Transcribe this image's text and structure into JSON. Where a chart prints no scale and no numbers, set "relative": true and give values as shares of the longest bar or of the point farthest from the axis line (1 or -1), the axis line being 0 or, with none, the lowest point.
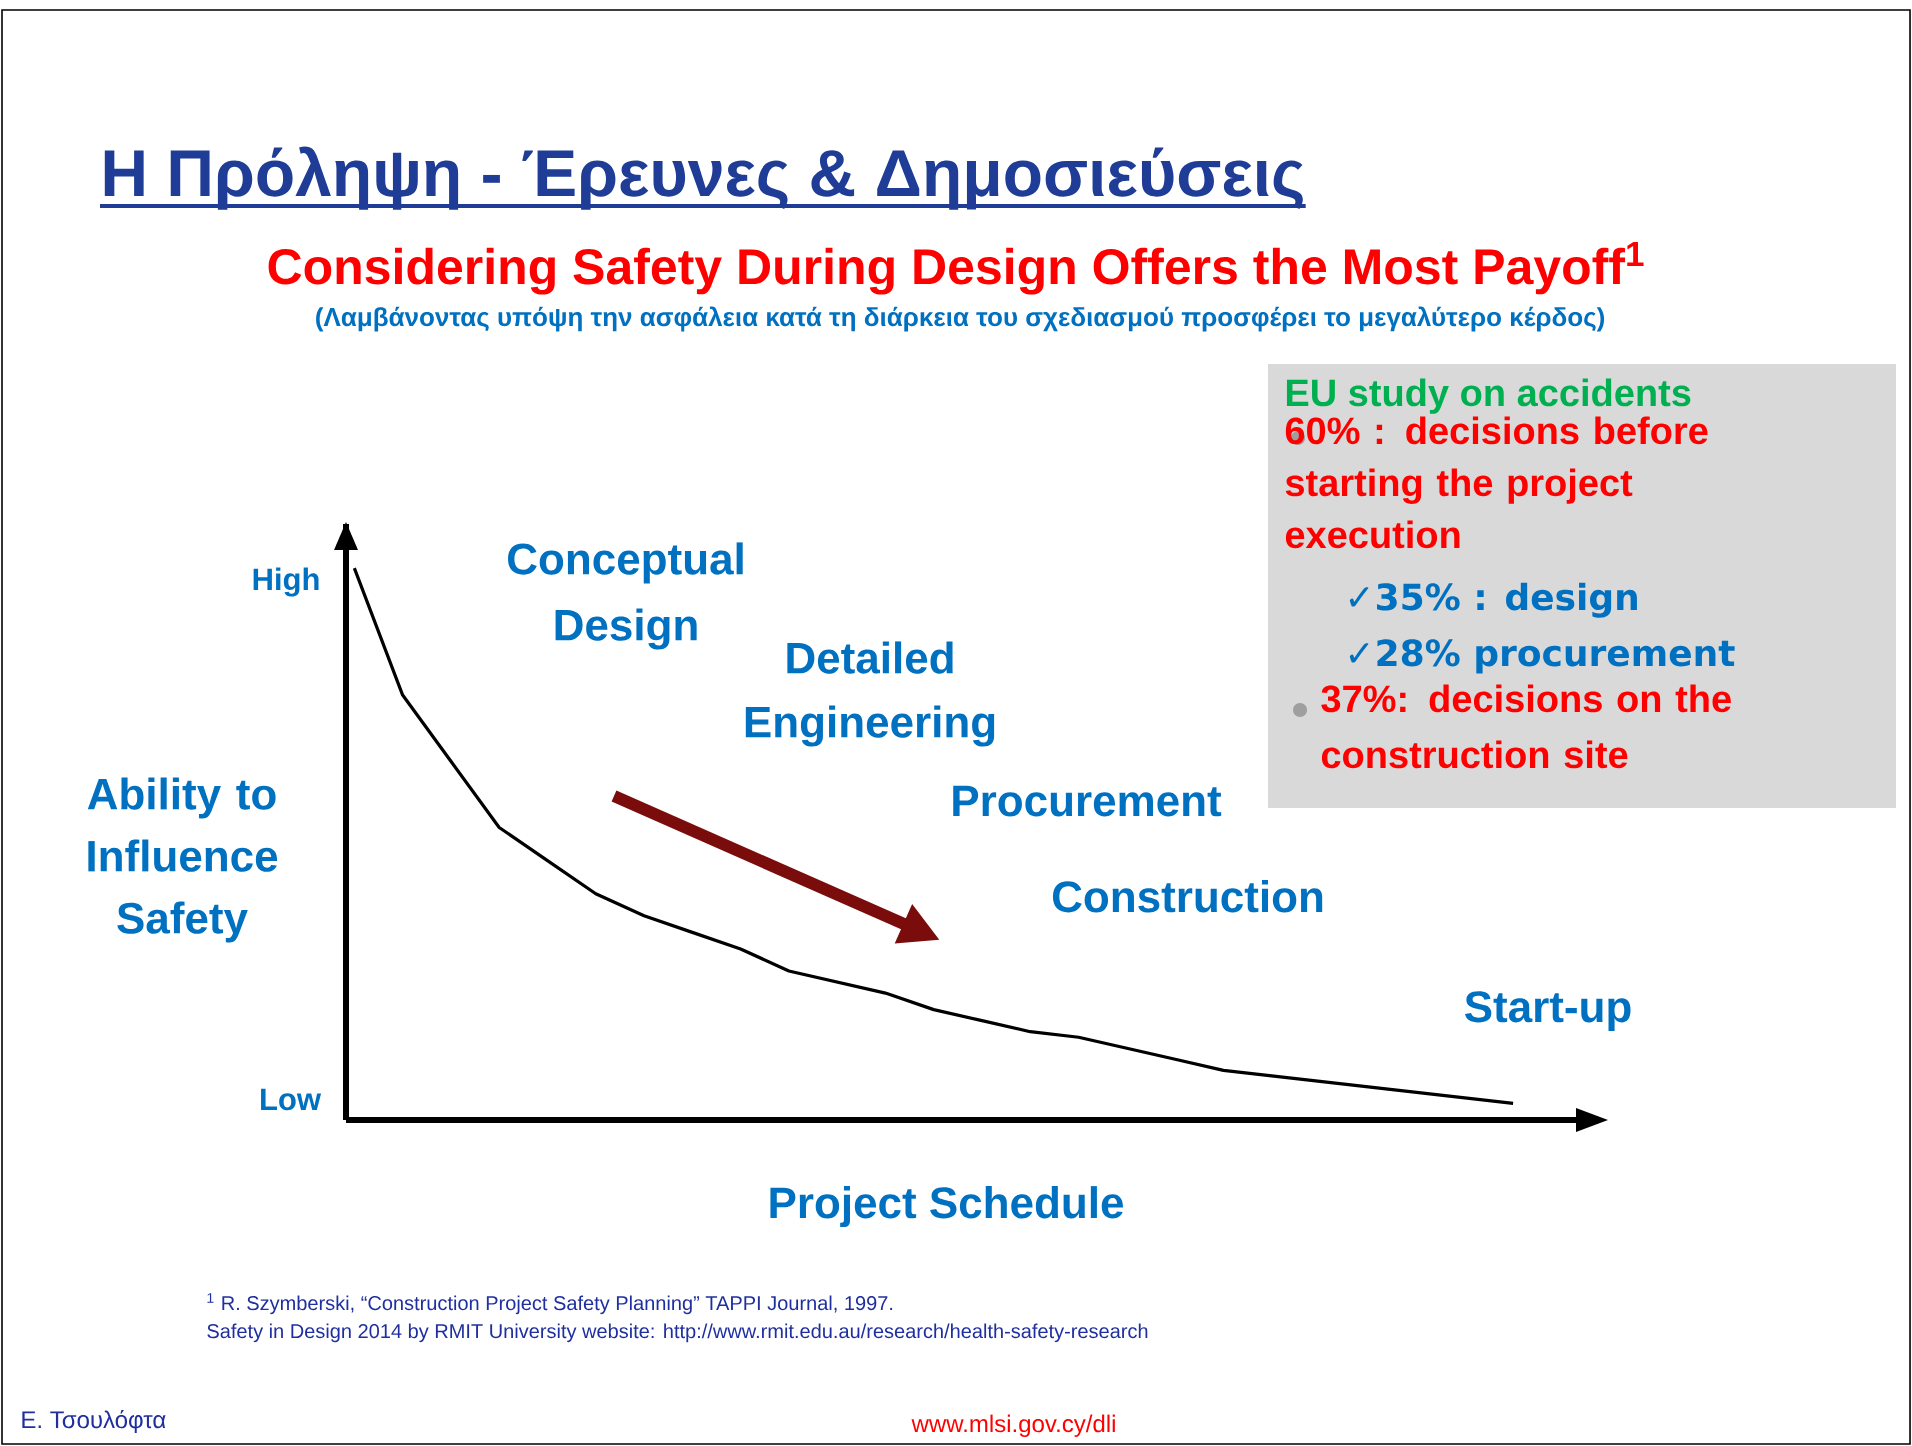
{
  "chart_data": {
    "type": "line",
    "relative": true,
    "title": "Η Πρόληψη - Έρευνες & Δημοσιεύσεις",
    "subtitle": "Considering Safety During Design Offers the Most Payoff$^{1}$",
    "xlabel": "Project Schedule",
    "ylabel": "Ability to Influence Safety",
    "categories": [
      null,
      null,
      null,
      null,
      null,
      null,
      null,
      null,
      null,
      null,
      null,
      null,
      null,
      null,
      null,
      null,
      null,
      null,
      null,
      null,
      null,
      null,
      null,
      null,
      null
    ],
    "series": [
      {
        "color": "#000000",
        "values": [
          1.0,
          0.77,
          0.65,
          0.53,
          0.47,
          0.41,
          0.37,
          0.34,
          0.31,
          0.27,
          0.25,
          0.23,
          0.2,
          0.18,
          0.16,
          0.15,
          0.13,
          0.11,
          0.09,
          0.08,
          0.07,
          0.06,
          0.05,
          0.04,
          0.03
        ]
      }
    ],
    "annotations": [
      "(Λαμβάνοντας υπόψη την ασφάλεια κατά τη διάρκεια του σχεδιασμού προσφέρει το μεγαλύτερο κέρδος)",
      "High",
      "Low",
      "Conceptual Design",
      "Detailed Engineering",
      "Procurement",
      "Construction",
      "Start-up",
      "EU study on accidents",
      "60% : decisions before starting the project execution",
      "✓35% : design",
      "✓28% procurement",
      "37%: decisions on the construction site",
      "$^{1}$ R. Szymberski, “Construction Project Safety Planning” TAPPI Journal, 1997.",
      "Safety in Design 2014 by RMIT University  website: http://www.rmit.edu.au/research/health-safety-research",
      "Ε. Τσουλόφτα",
      "www.mlsi.gov.cy/dli"
    ]
  }
}
